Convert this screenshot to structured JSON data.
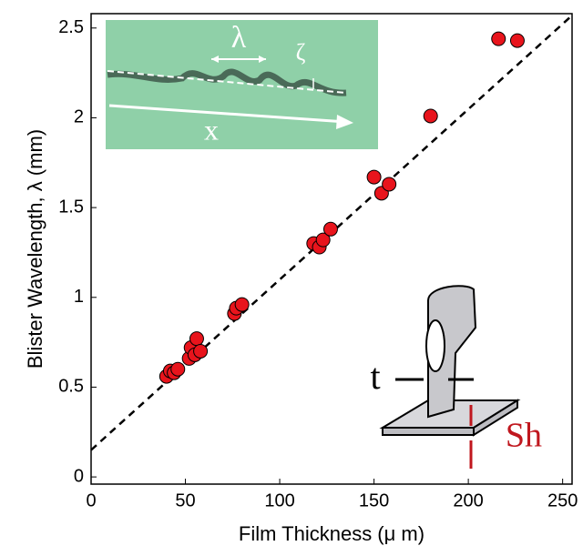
{
  "chart_data": {
    "type": "scatter",
    "x_label": "Film Thickness (μ m)",
    "y_label": "Blister Wavelength, λ (mm)",
    "xlim": [
      0,
      255
    ],
    "ylim": [
      -0.04,
      2.58
    ],
    "xticks": [
      0,
      50,
      100,
      150,
      200,
      250
    ],
    "yticks": [
      0,
      0.5,
      1,
      1.5,
      2,
      2.5
    ],
    "series": [
      {
        "color": "#e8141c",
        "x": [
          40,
          42,
          44,
          46,
          52,
          53,
          55,
          56,
          58,
          76,
          77,
          80,
          118,
          121,
          123,
          127,
          150,
          154,
          158,
          180,
          216,
          226
        ],
        "values": [
          0.56,
          0.59,
          0.58,
          0.6,
          0.66,
          0.72,
          0.68,
          0.77,
          0.7,
          0.91,
          0.94,
          0.96,
          1.3,
          1.28,
          1.32,
          1.38,
          1.67,
          1.58,
          1.63,
          2.01,
          2.44,
          2.43
        ]
      }
    ],
    "fit": {
      "color": "#000000",
      "x": [
        0,
        255
      ],
      "values": [
        0.15,
        2.57
      ]
    },
    "inset_labels": [
      "λ",
      "ζ",
      "x",
      "t",
      "Sh"
    ]
  }
}
